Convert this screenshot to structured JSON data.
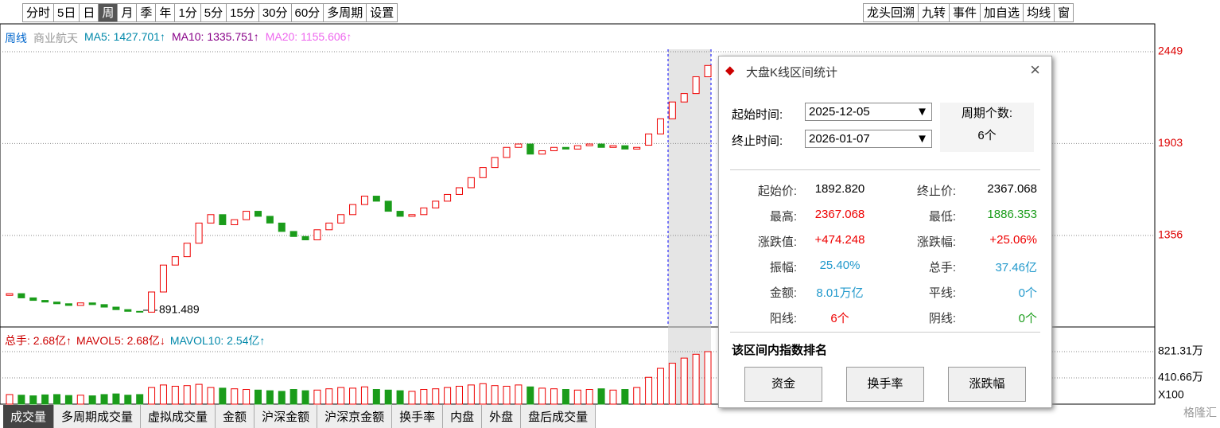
{
  "toolbar": {
    "left": [
      "分时",
      "5日",
      "日",
      "周",
      "月",
      "季",
      "年",
      "1分",
      "5分",
      "15分",
      "30分",
      "60分",
      "多周期",
      "设置"
    ],
    "right": [
      "龙头回溯",
      "九转",
      "事件",
      "加自选",
      "均线",
      "窗"
    ]
  },
  "indicator": {
    "period": "周线",
    "name": "商业航天",
    "ma5": "MA5: 1427.701↑",
    "ma10": "MA10: 1335.751↑",
    "ma20": "MA20: 1155.606↑"
  },
  "kline": {
    "price_ticks": [
      2449,
      1903,
      1356
    ],
    "low_label": "891.489",
    "open": [
      1000,
      1010,
      985,
      970,
      960,
      950,
      940,
      955,
      945,
      930,
      915,
      905,
      900,
      1020,
      1180,
      1230,
      1310,
      1430,
      1480,
      1420,
      1450,
      1500,
      1470,
      1430,
      1380,
      1350,
      1330,
      1390,
      1430,
      1480,
      1540,
      1590,
      1560,
      1500,
      1470,
      1480,
      1520,
      1560,
      1600,
      1640,
      1700,
      1760,
      1820,
      1880,
      1900,
      1840,
      1860,
      1880,
      1870,
      1890,
      1900,
      1880,
      1890,
      1870,
      1892.82,
      1960,
      2050,
      2150,
      2200,
      2300
    ],
    "close": [
      1010,
      985,
      970,
      960,
      950,
      940,
      955,
      945,
      930,
      915,
      905,
      900,
      1020,
      1180,
      1230,
      1310,
      1430,
      1480,
      1420,
      1450,
      1500,
      1470,
      1430,
      1380,
      1350,
      1330,
      1390,
      1430,
      1480,
      1540,
      1590,
      1560,
      1500,
      1470,
      1480,
      1520,
      1560,
      1600,
      1640,
      1700,
      1760,
      1820,
      1880,
      1900,
      1840,
      1860,
      1880,
      1870,
      1890,
      1900,
      1880,
      1890,
      1870,
      1880,
      1960,
      2050,
      2150,
      2200,
      2300,
      2367.068
    ],
    "volume": [
      150,
      140,
      130,
      145,
      150,
      135,
      140,
      130,
      150,
      160,
      140,
      150,
      260,
      300,
      280,
      290,
      310,
      260,
      250,
      240,
      230,
      220,
      210,
      200,
      230,
      210,
      220,
      240,
      260,
      250,
      270,
      230,
      220,
      210,
      200,
      230,
      240,
      260,
      280,
      300,
      320,
      290,
      280,
      300,
      270,
      250,
      240,
      230,
      220,
      230,
      240,
      220,
      230,
      260,
      420,
      560,
      640,
      720,
      780,
      821.31
    ],
    "volume_ticks": [
      {
        "value": 821.31,
        "label": "821.31万"
      },
      {
        "value": 410.66,
        "label": "410.66万"
      }
    ],
    "volume_unit": "X100",
    "volume_legend": [
      "总手: 2.68亿↑",
      "MAVOL5: 2.68亿↓",
      "MAVOL10: 2.54亿↑"
    ]
  },
  "tabs": [
    "成交量",
    "多周期成交量",
    "虚拟成交量",
    "金额",
    "沪深金额",
    "沪深京金额",
    "换手率",
    "内盘",
    "外盘",
    "盘后成交量"
  ],
  "watermark": "格隆汇",
  "dialog": {
    "title": "大盘K线区间统计",
    "start_label": "起始时间:",
    "start_value": "2025-12-05",
    "end_label": "终止时间:",
    "end_value": "2026-01-07",
    "count_label": "周期个数:",
    "count_value": "6个",
    "left": [
      [
        "起始价:",
        "1892.820"
      ],
      [
        "最高:",
        "2367.068"
      ],
      [
        "涨跌值:",
        "+474.248"
      ],
      [
        "振幅:",
        "25.40%"
      ],
      [
        "金额:",
        "8.01万亿"
      ],
      [
        "阳线:",
        "6个"
      ]
    ],
    "right": [
      [
        "终止价:",
        "2367.068"
      ],
      [
        "最低:",
        "1886.353"
      ],
      [
        "涨跌幅:",
        "+25.06%"
      ],
      [
        "总手:",
        "37.46亿"
      ],
      [
        "平线:",
        "0个"
      ],
      [
        "阴线:",
        "0个"
      ]
    ],
    "section": "该区间内指数排名",
    "buttons": [
      "资金",
      "换手率",
      "涨跌幅"
    ]
  }
}
